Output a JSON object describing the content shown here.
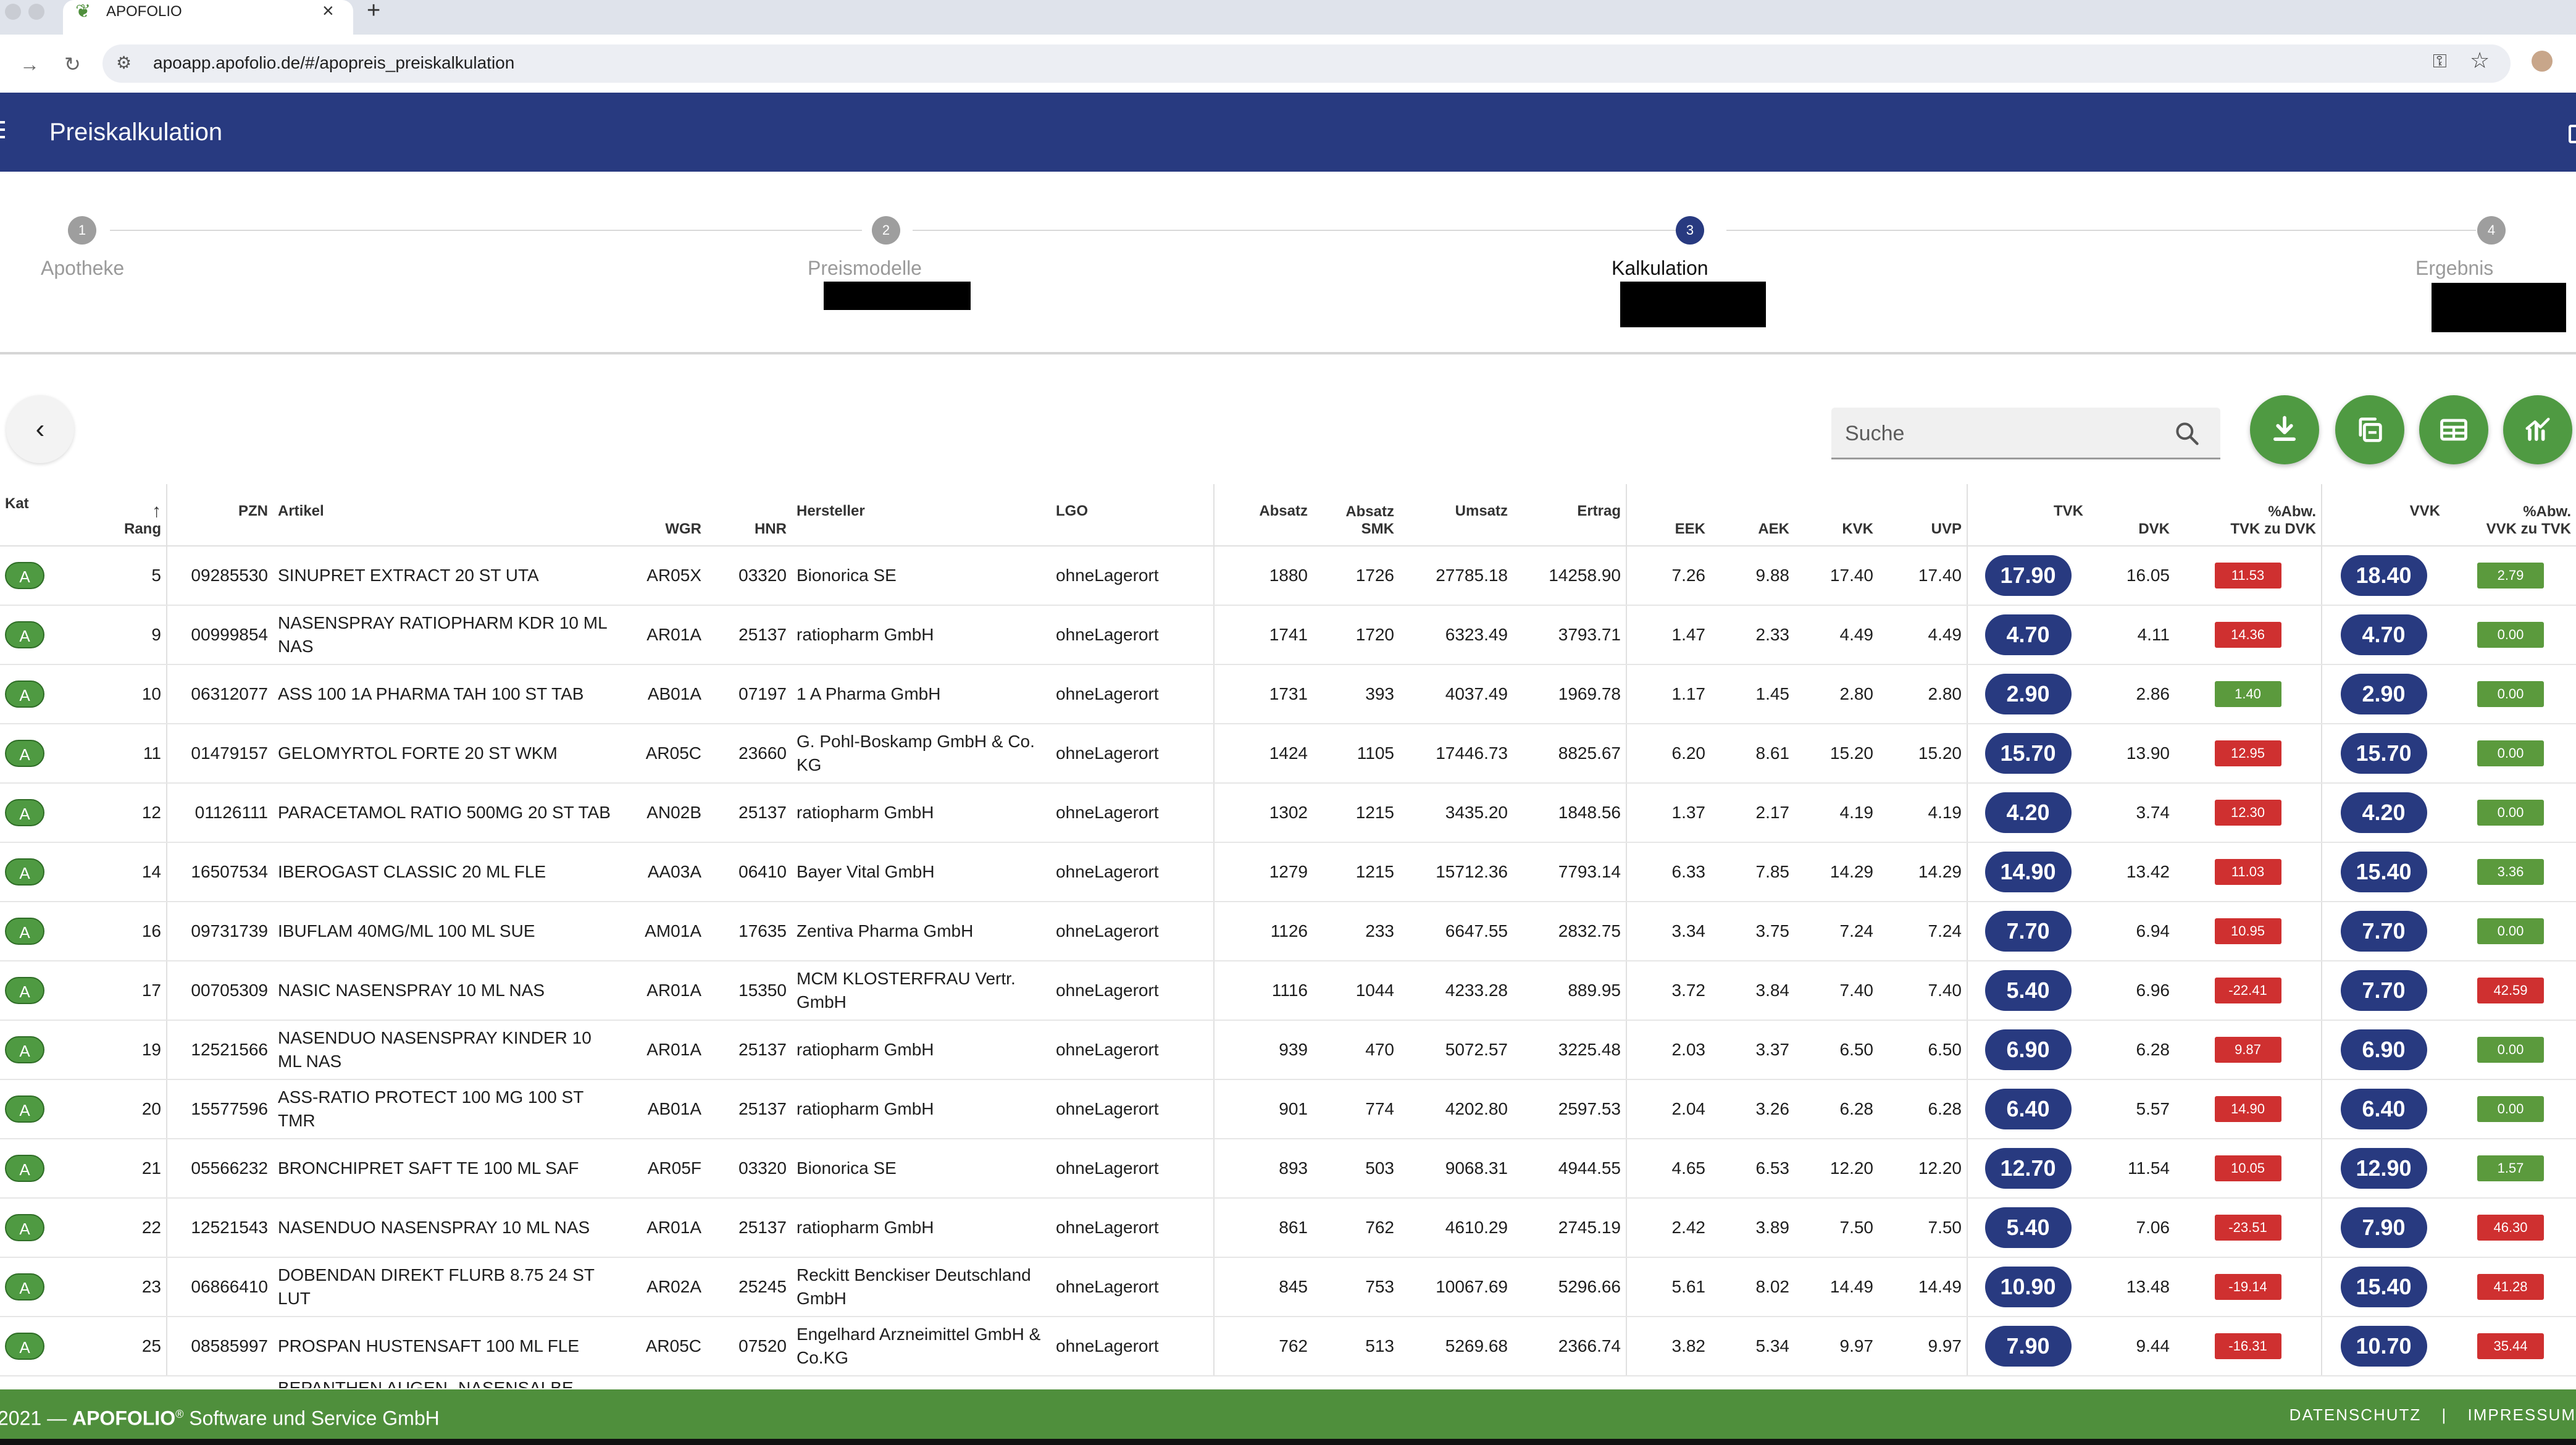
{
  "browser": {
    "tab_title": "APOFOLIO",
    "tab_close": "×",
    "tab_new": "+",
    "url": "apoapp.apofolio.de/#/apopreis_preiskalkulation"
  },
  "header": {
    "title": "Preiskalkulation"
  },
  "stepper": {
    "steps": [
      {
        "number": "1",
        "label": "Apotheke"
      },
      {
        "number": "2",
        "label": "Preismodelle"
      },
      {
        "number": "3",
        "label": "Kalkulation"
      },
      {
        "number": "4",
        "label": "Ergebnis"
      }
    ]
  },
  "toolbar": {
    "back_glyph": "‹",
    "search_placeholder": "Suche",
    "buttons": [
      "download-icon",
      "copy-icon",
      "table-icon",
      "chart-icon"
    ]
  },
  "table": {
    "columns": {
      "kat": "Kat",
      "rang": "Rang",
      "pzn": "PZN",
      "artikel": "Artikel",
      "wgr": "WGR",
      "hnr": "HNR",
      "hersteller": "Hersteller",
      "lgo": "LGO",
      "absatz": "Absatz",
      "absatz_smk_1": "Absatz",
      "absatz_smk_2": "SMK",
      "umsatz": "Umsatz",
      "ertrag": "Ertrag",
      "eek": "EEK",
      "aek": "AEK",
      "kvk": "KVK",
      "uvp": "UVP",
      "tvk": "TVK",
      "dvk": "DVK",
      "abw_tvk_1": "%Abw.",
      "abw_tvk_2": "TVK zu DVK",
      "vvk": "VVK",
      "abw_vvk_1": "%Abw.",
      "abw_vvk_2": "VVK zu TVK",
      "sort_arrow": "↑"
    },
    "rows": [
      {
        "kat": "A",
        "rang": "5",
        "pzn": "09285530",
        "artikel": "SINUPRET EXTRACT 20 ST UTA",
        "wgr": "AR05X",
        "hnr": "03320",
        "hersteller": "Bionorica SE",
        "lgo": "ohneLagerort",
        "absatz": "1880",
        "absatz_smk": "1726",
        "umsatz": "27785.18",
        "ertrag": "14258.90",
        "eek": "7.26",
        "aek": "9.88",
        "kvk": "17.40",
        "uvp": "17.40",
        "tvk": "17.90",
        "dvk": "16.05",
        "abw_tvk": "11.53",
        "abw_tvk_color": "red",
        "vvk": "18.40",
        "abw_vvk": "2.79",
        "abw_vvk_color": "green"
      },
      {
        "kat": "A",
        "rang": "9",
        "pzn": "00999854",
        "artikel": "NASENSPRAY RATIOPHARM KDR 10 ML NAS",
        "wgr": "AR01A",
        "hnr": "25137",
        "hersteller": "ratiopharm GmbH",
        "lgo": "ohneLagerort",
        "absatz": "1741",
        "absatz_smk": "1720",
        "umsatz": "6323.49",
        "ertrag": "3793.71",
        "eek": "1.47",
        "aek": "2.33",
        "kvk": "4.49",
        "uvp": "4.49",
        "tvk": "4.70",
        "dvk": "4.11",
        "abw_tvk": "14.36",
        "abw_tvk_color": "red",
        "vvk": "4.70",
        "abw_vvk": "0.00",
        "abw_vvk_color": "green"
      },
      {
        "kat": "A",
        "rang": "10",
        "pzn": "06312077",
        "artikel": "ASS 100 1A PHARMA TAH 100 ST TAB",
        "wgr": "AB01A",
        "hnr": "07197",
        "hersteller": "1 A Pharma GmbH",
        "lgo": "ohneLagerort",
        "absatz": "1731",
        "absatz_smk": "393",
        "umsatz": "4037.49",
        "ertrag": "1969.78",
        "eek": "1.17",
        "aek": "1.45",
        "kvk": "2.80",
        "uvp": "2.80",
        "tvk": "2.90",
        "dvk": "2.86",
        "abw_tvk": "1.40",
        "abw_tvk_color": "green",
        "vvk": "2.90",
        "abw_vvk": "0.00",
        "abw_vvk_color": "green"
      },
      {
        "kat": "A",
        "rang": "11",
        "pzn": "01479157",
        "artikel": "GELOMYRTOL FORTE 20 ST WKM",
        "wgr": "AR05C",
        "hnr": "23660",
        "hersteller": "G. Pohl-Boskamp GmbH & Co. KG",
        "lgo": "ohneLagerort",
        "absatz": "1424",
        "absatz_smk": "1105",
        "umsatz": "17446.73",
        "ertrag": "8825.67",
        "eek": "6.20",
        "aek": "8.61",
        "kvk": "15.20",
        "uvp": "15.20",
        "tvk": "15.70",
        "dvk": "13.90",
        "abw_tvk": "12.95",
        "abw_tvk_color": "red",
        "vvk": "15.70",
        "abw_vvk": "0.00",
        "abw_vvk_color": "green"
      },
      {
        "kat": "A",
        "rang": "12",
        "pzn": "01126111",
        "artikel": "PARACETAMOL RATIO 500MG 20 ST TAB",
        "wgr": "AN02B",
        "hnr": "25137",
        "hersteller": "ratiopharm GmbH",
        "lgo": "ohneLagerort",
        "absatz": "1302",
        "absatz_smk": "1215",
        "umsatz": "3435.20",
        "ertrag": "1848.56",
        "eek": "1.37",
        "aek": "2.17",
        "kvk": "4.19",
        "uvp": "4.19",
        "tvk": "4.20",
        "dvk": "3.74",
        "abw_tvk": "12.30",
        "abw_tvk_color": "red",
        "vvk": "4.20",
        "abw_vvk": "0.00",
        "abw_vvk_color": "green"
      },
      {
        "kat": "A",
        "rang": "14",
        "pzn": "16507534",
        "artikel": "IBEROGAST CLASSIC 20 ML FLE",
        "wgr": "AA03A",
        "hnr": "06410",
        "hersteller": "Bayer Vital GmbH",
        "lgo": "ohneLagerort",
        "absatz": "1279",
        "absatz_smk": "1215",
        "umsatz": "15712.36",
        "ertrag": "7793.14",
        "eek": "6.33",
        "aek": "7.85",
        "kvk": "14.29",
        "uvp": "14.29",
        "tvk": "14.90",
        "dvk": "13.42",
        "abw_tvk": "11.03",
        "abw_tvk_color": "red",
        "vvk": "15.40",
        "abw_vvk": "3.36",
        "abw_vvk_color": "green"
      },
      {
        "kat": "A",
        "rang": "16",
        "pzn": "09731739",
        "artikel": "IBUFLAM 40MG/ML 100 ML SUE",
        "wgr": "AM01A",
        "hnr": "17635",
        "hersteller": "Zentiva Pharma GmbH",
        "lgo": "ohneLagerort",
        "absatz": "1126",
        "absatz_smk": "233",
        "umsatz": "6647.55",
        "ertrag": "2832.75",
        "eek": "3.34",
        "aek": "3.75",
        "kvk": "7.24",
        "uvp": "7.24",
        "tvk": "7.70",
        "dvk": "6.94",
        "abw_tvk": "10.95",
        "abw_tvk_color": "red",
        "vvk": "7.70",
        "abw_vvk": "0.00",
        "abw_vvk_color": "green"
      },
      {
        "kat": "A",
        "rang": "17",
        "pzn": "00705309",
        "artikel": "NASIC NASENSPRAY 10 ML NAS",
        "wgr": "AR01A",
        "hnr": "15350",
        "hersteller": "MCM KLOSTERFRAU Vertr. GmbH",
        "lgo": "ohneLagerort",
        "absatz": "1116",
        "absatz_smk": "1044",
        "umsatz": "4233.28",
        "ertrag": "889.95",
        "eek": "3.72",
        "aek": "3.84",
        "kvk": "7.40",
        "uvp": "7.40",
        "tvk": "5.40",
        "dvk": "6.96",
        "abw_tvk": "-22.41",
        "abw_tvk_color": "red",
        "vvk": "7.70",
        "abw_vvk": "42.59",
        "abw_vvk_color": "red"
      },
      {
        "kat": "A",
        "rang": "19",
        "pzn": "12521566",
        "artikel": "NASENDUO NASENSPRAY KINDER 10 ML NAS",
        "wgr": "AR01A",
        "hnr": "25137",
        "hersteller": "ratiopharm GmbH",
        "lgo": "ohneLagerort",
        "absatz": "939",
        "absatz_smk": "470",
        "umsatz": "5072.57",
        "ertrag": "3225.48",
        "eek": "2.03",
        "aek": "3.37",
        "kvk": "6.50",
        "uvp": "6.50",
        "tvk": "6.90",
        "dvk": "6.28",
        "abw_tvk": "9.87",
        "abw_tvk_color": "red",
        "vvk": "6.90",
        "abw_vvk": "0.00",
        "abw_vvk_color": "green"
      },
      {
        "kat": "A",
        "rang": "20",
        "pzn": "15577596",
        "artikel": "ASS-RATIO PROTECT 100 MG 100 ST TMR",
        "wgr": "AB01A",
        "hnr": "25137",
        "hersteller": "ratiopharm GmbH",
        "lgo": "ohneLagerort",
        "absatz": "901",
        "absatz_smk": "774",
        "umsatz": "4202.80",
        "ertrag": "2597.53",
        "eek": "2.04",
        "aek": "3.26",
        "kvk": "6.28",
        "uvp": "6.28",
        "tvk": "6.40",
        "dvk": "5.57",
        "abw_tvk": "14.90",
        "abw_tvk_color": "red",
        "vvk": "6.40",
        "abw_vvk": "0.00",
        "abw_vvk_color": "green"
      },
      {
        "kat": "A",
        "rang": "21",
        "pzn": "05566232",
        "artikel": "BRONCHIPRET SAFT TE 100 ML SAF",
        "wgr": "AR05F",
        "hnr": "03320",
        "hersteller": "Bionorica SE",
        "lgo": "ohneLagerort",
        "absatz": "893",
        "absatz_smk": "503",
        "umsatz": "9068.31",
        "ertrag": "4944.55",
        "eek": "4.65",
        "aek": "6.53",
        "kvk": "12.20",
        "uvp": "12.20",
        "tvk": "12.70",
        "dvk": "11.54",
        "abw_tvk": "10.05",
        "abw_tvk_color": "red",
        "vvk": "12.90",
        "abw_vvk": "1.57",
        "abw_vvk_color": "green"
      },
      {
        "kat": "A",
        "rang": "22",
        "pzn": "12521543",
        "artikel": "NASENDUO NASENSPRAY 10 ML NAS",
        "wgr": "AR01A",
        "hnr": "25137",
        "hersteller": "ratiopharm GmbH",
        "lgo": "ohneLagerort",
        "absatz": "861",
        "absatz_smk": "762",
        "umsatz": "4610.29",
        "ertrag": "2745.19",
        "eek": "2.42",
        "aek": "3.89",
        "kvk": "7.50",
        "uvp": "7.50",
        "tvk": "5.40",
        "dvk": "7.06",
        "abw_tvk": "-23.51",
        "abw_tvk_color": "red",
        "vvk": "7.90",
        "abw_vvk": "46.30",
        "abw_vvk_color": "red"
      },
      {
        "kat": "A",
        "rang": "23",
        "pzn": "06866410",
        "artikel": "DOBENDAN DIREKT FLURB 8.75 24 ST LUT",
        "wgr": "AR02A",
        "hnr": "25245",
        "hersteller": "Reckitt Benckiser Deutschland GmbH",
        "lgo": "ohneLagerort",
        "absatz": "845",
        "absatz_smk": "753",
        "umsatz": "10067.69",
        "ertrag": "5296.66",
        "eek": "5.61",
        "aek": "8.02",
        "kvk": "14.49",
        "uvp": "14.49",
        "tvk": "10.90",
        "dvk": "13.48",
        "abw_tvk": "-19.14",
        "abw_tvk_color": "red",
        "vvk": "15.40",
        "abw_vvk": "41.28",
        "abw_vvk_color": "red"
      },
      {
        "kat": "A",
        "rang": "25",
        "pzn": "08585997",
        "artikel": "PROSPAN HUSTENSAFT 100 ML FLE",
        "wgr": "AR05C",
        "hnr": "07520",
        "hersteller": "Engelhard Arzneimittel GmbH & Co.KG",
        "lgo": "ohneLagerort",
        "absatz": "762",
        "absatz_smk": "513",
        "umsatz": "5269.68",
        "ertrag": "2366.74",
        "eek": "3.82",
        "aek": "5.34",
        "kvk": "9.97",
        "uvp": "9.97",
        "tvk": "7.90",
        "dvk": "9.44",
        "abw_tvk": "-16.31",
        "abw_tvk_color": "red",
        "vvk": "10.70",
        "abw_vvk": "35.44",
        "abw_vvk_color": "red"
      }
    ],
    "partial_row_text": "BEPANTHEN AUGEN- NASENSALBE"
  },
  "footer": {
    "year": "2021",
    "dash": " — ",
    "brand": "APOFOLIO",
    "reg": "®",
    "company": " Software und Service GmbH",
    "datenschutz": "DATENSCHUTZ",
    "divider": "|",
    "impressum": "IMPRESSUM"
  },
  "colors": {
    "header_blue": "#283a80",
    "footer_green": "#4f8f3c",
    "badge_red": "#cf3030",
    "badge_green": "#5b9a3d"
  }
}
